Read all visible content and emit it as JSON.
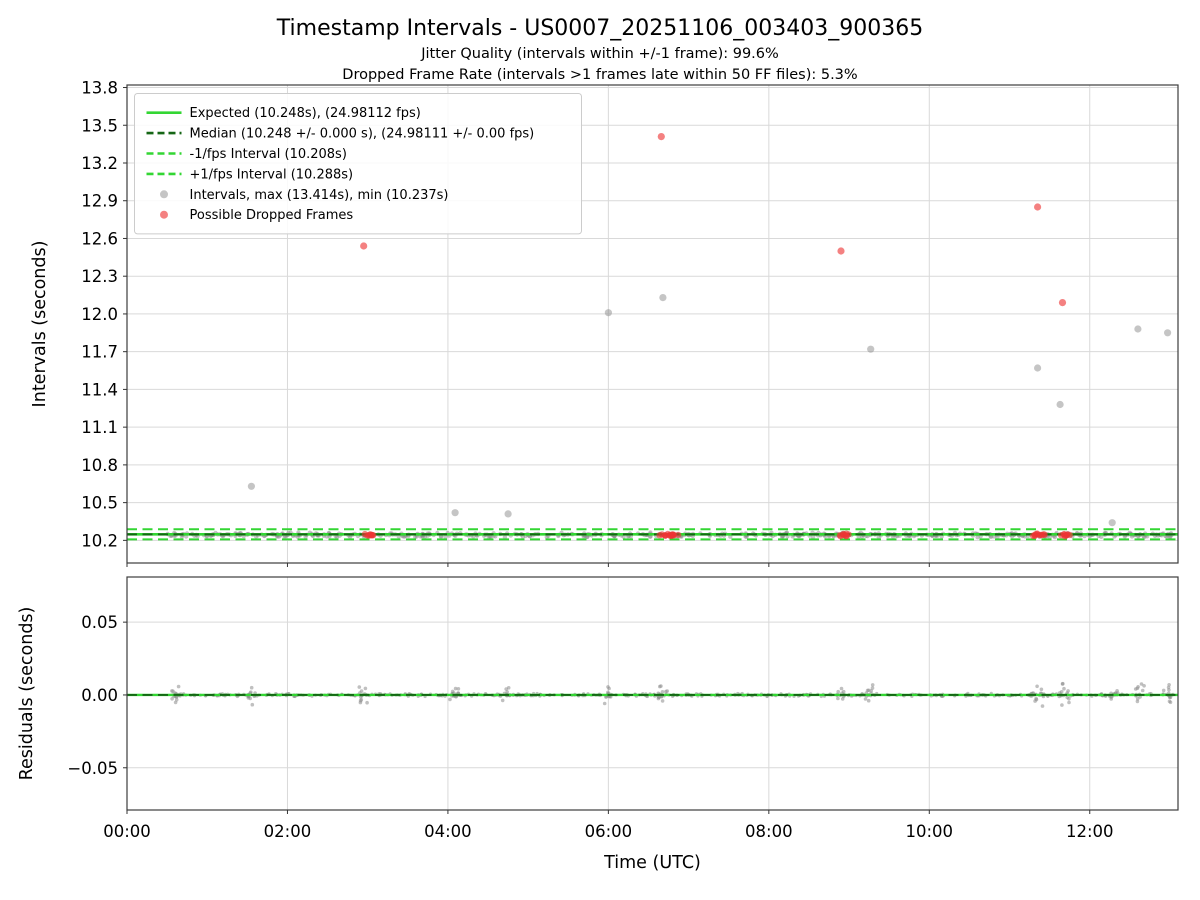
{
  "header": {
    "title": "Timestamp Intervals - US0007_20251106_003403_900365",
    "subtitle_jitter": "Jitter Quality (intervals within +/-1 frame): 99.6%",
    "subtitle_dropped": "Dropped Frame Rate (intervals >1 frames late within 50 FF files): 5.3%"
  },
  "colors": {
    "expected_green": "#33d633",
    "median_dark_green": "#156615",
    "fps_band_green": "#33d633",
    "interval_gray": "#8c8c8c",
    "dropped_red": "#ee3333",
    "grid": "#d9d9d9",
    "spine": "#3c3c3c",
    "legend_border": "#cccccc"
  },
  "chart_data": [
    {
      "name": "intervals",
      "type": "scatter",
      "ylabel": "Intervals (seconds)",
      "ylim": [
        10.02,
        13.82
      ],
      "yticks": [
        {
          "v": 10.2,
          "label": "10.2"
        },
        {
          "v": 10.5,
          "label": "10.5"
        },
        {
          "v": 10.8,
          "label": "10.8"
        },
        {
          "v": 11.1,
          "label": "11.1"
        },
        {
          "v": 11.4,
          "label": "11.4"
        },
        {
          "v": 11.7,
          "label": "11.7"
        },
        {
          "v": 12.0,
          "label": "12.0"
        },
        {
          "v": 12.3,
          "label": "12.3"
        },
        {
          "v": 12.6,
          "label": "12.6"
        },
        {
          "v": 12.9,
          "label": "12.9"
        },
        {
          "v": 13.2,
          "label": "13.2"
        },
        {
          "v": 13.5,
          "label": "13.5"
        },
        {
          "v": 13.8,
          "label": "13.8"
        }
      ],
      "xlim": [
        0,
        13.1
      ],
      "xticks": [
        {
          "v": 0,
          "label": "00:00"
        },
        {
          "v": 2,
          "label": "02:00"
        },
        {
          "v": 4,
          "label": "04:00"
        },
        {
          "v": 6,
          "label": "06:00"
        },
        {
          "v": 8,
          "label": "08:00"
        },
        {
          "v": 10,
          "label": "10:00"
        },
        {
          "v": 12,
          "label": "12:00"
        }
      ],
      "show_x_labels": false,
      "ref_lines": [
        {
          "id": "expected",
          "y": 10.248,
          "style": "solid",
          "color": "#33d633",
          "width": 2.6,
          "label": "Expected (10.248s), (24.98112 fps)"
        },
        {
          "id": "median",
          "y": 10.248,
          "style": "dashed",
          "color": "#156615",
          "width": 2.0,
          "label": "Median (10.248 +/- 0.000 s), (24.98111 +/- 0.00 fps)"
        },
        {
          "id": "minus-1fps",
          "y": 10.208,
          "style": "dashed",
          "color": "#33d633",
          "width": 2.0,
          "label": "-1/fps Interval (10.208s)"
        },
        {
          "id": "plus-1fps",
          "y": 10.288,
          "style": "dashed",
          "color": "#33d633",
          "width": 2.0,
          "label": "+1/fps Interval (10.288s)"
        }
      ],
      "series": [
        {
          "id": "intervals-gray",
          "name": "Intervals, max (13.414s), min (10.237s)",
          "color": "#8c8c8c",
          "alpha": 0.5,
          "z": "bottom",
          "outlier_r": 3.6,
          "band_r": 2.2,
          "outliers": [
            [
              1.55,
              10.63
            ],
            [
              4.09,
              10.42
            ],
            [
              4.75,
              10.41
            ],
            [
              6.0,
              12.01
            ],
            [
              6.68,
              12.13
            ],
            [
              9.27,
              11.72
            ],
            [
              11.35,
              11.57
            ],
            [
              11.63,
              11.28
            ],
            [
              12.28,
              10.34
            ],
            [
              12.6,
              11.88
            ],
            [
              12.97,
              11.85
            ]
          ],
          "band": {
            "y": 10.243,
            "jitter": 0.02,
            "x_start": 0.5,
            "x_end": 13.05,
            "count": 520
          }
        },
        {
          "id": "dropped-red",
          "name": "Possible Dropped Frames",
          "color": "#ee3333",
          "alpha": 0.62,
          "z": "top",
          "outlier_r": 3.6,
          "cluster_r": 3.2,
          "outliers": [
            [
              2.95,
              12.54
            ],
            [
              6.66,
              13.41
            ],
            [
              8.9,
              12.5
            ],
            [
              11.35,
              12.85
            ],
            [
              11.66,
              12.09
            ]
          ],
          "clusters": [
            {
              "x": 3.0,
              "y": 10.243,
              "n": 9,
              "w": 0.14,
              "spread": 0.012
            },
            {
              "x": 6.75,
              "y": 10.243,
              "n": 16,
              "w": 0.26,
              "spread": 0.012
            },
            {
              "x": 8.95,
              "y": 10.243,
              "n": 9,
              "w": 0.14,
              "spread": 0.012
            },
            {
              "x": 11.38,
              "y": 10.243,
              "n": 11,
              "w": 0.18,
              "spread": 0.012
            },
            {
              "x": 11.7,
              "y": 10.243,
              "n": 8,
              "w": 0.12,
              "spread": 0.012
            }
          ]
        }
      ]
    },
    {
      "name": "residuals",
      "type": "scatter",
      "ylabel": "Residuals (seconds)",
      "xlabel": "Time (UTC)",
      "ylim": [
        -0.079,
        0.081
      ],
      "yticks": [
        {
          "v": -0.05,
          "label": "−0.05"
        },
        {
          "v": 0.0,
          "label": "0.00"
        },
        {
          "v": 0.05,
          "label": "0.05"
        }
      ],
      "xlim": [
        0,
        13.1
      ],
      "xticks": [
        {
          "v": 0,
          "label": "00:00"
        },
        {
          "v": 2,
          "label": "02:00"
        },
        {
          "v": 4,
          "label": "04:00"
        },
        {
          "v": 6,
          "label": "06:00"
        },
        {
          "v": 8,
          "label": "08:00"
        },
        {
          "v": 10,
          "label": "10:00"
        },
        {
          "v": 12,
          "label": "12:00"
        }
      ],
      "show_x_labels": true,
      "ref_lines": [
        {
          "id": "expected-zero",
          "y": 0,
          "style": "solid",
          "color": "#33d633",
          "width": 2.4,
          "label": null
        },
        {
          "id": "median-zero",
          "y": 0,
          "style": "dashed",
          "color": "#156615",
          "width": 1.8,
          "label": null
        }
      ],
      "series": [
        {
          "id": "residuals-gray",
          "name": null,
          "color": "#8c8c8c",
          "alpha": 0.55,
          "z": "bottom",
          "outlier_r": 1.8,
          "band_r": 1.6,
          "cluster_r": 1.8,
          "band": {
            "y": 0,
            "jitter": 0.0012,
            "x_start": 0.55,
            "x_end": 13.05,
            "count": 520
          },
          "clusters": [
            {
              "x": 0.6,
              "y": 0,
              "n": 10,
              "w": 0.1,
              "spread": 0.008
            },
            {
              "x": 1.55,
              "y": 0,
              "n": 10,
              "w": 0.1,
              "spread": 0.007
            },
            {
              "x": 2.95,
              "y": 0,
              "n": 12,
              "w": 0.12,
              "spread": 0.009
            },
            {
              "x": 4.08,
              "y": 0,
              "n": 12,
              "w": 0.12,
              "spread": 0.008
            },
            {
              "x": 4.73,
              "y": 0,
              "n": 10,
              "w": 0.1,
              "spread": 0.007
            },
            {
              "x": 6.0,
              "y": 0,
              "n": 12,
              "w": 0.1,
              "spread": 0.009
            },
            {
              "x": 6.68,
              "y": 0,
              "n": 14,
              "w": 0.14,
              "spread": 0.009
            },
            {
              "x": 8.9,
              "y": 0,
              "n": 10,
              "w": 0.1,
              "spread": 0.007
            },
            {
              "x": 9.25,
              "y": 0,
              "n": 10,
              "w": 0.1,
              "spread": 0.008
            },
            {
              "x": 11.35,
              "y": 0,
              "n": 16,
              "w": 0.16,
              "spread": 0.009
            },
            {
              "x": 11.68,
              "y": 0,
              "n": 14,
              "w": 0.14,
              "spread": 0.009
            },
            {
              "x": 12.3,
              "y": 0,
              "n": 10,
              "w": 0.1,
              "spread": 0.007
            },
            {
              "x": 12.62,
              "y": 0,
              "n": 12,
              "w": 0.12,
              "spread": 0.008
            },
            {
              "x": 12.98,
              "y": 0,
              "n": 12,
              "w": 0.12,
              "spread": 0.008
            }
          ]
        }
      ]
    }
  ]
}
